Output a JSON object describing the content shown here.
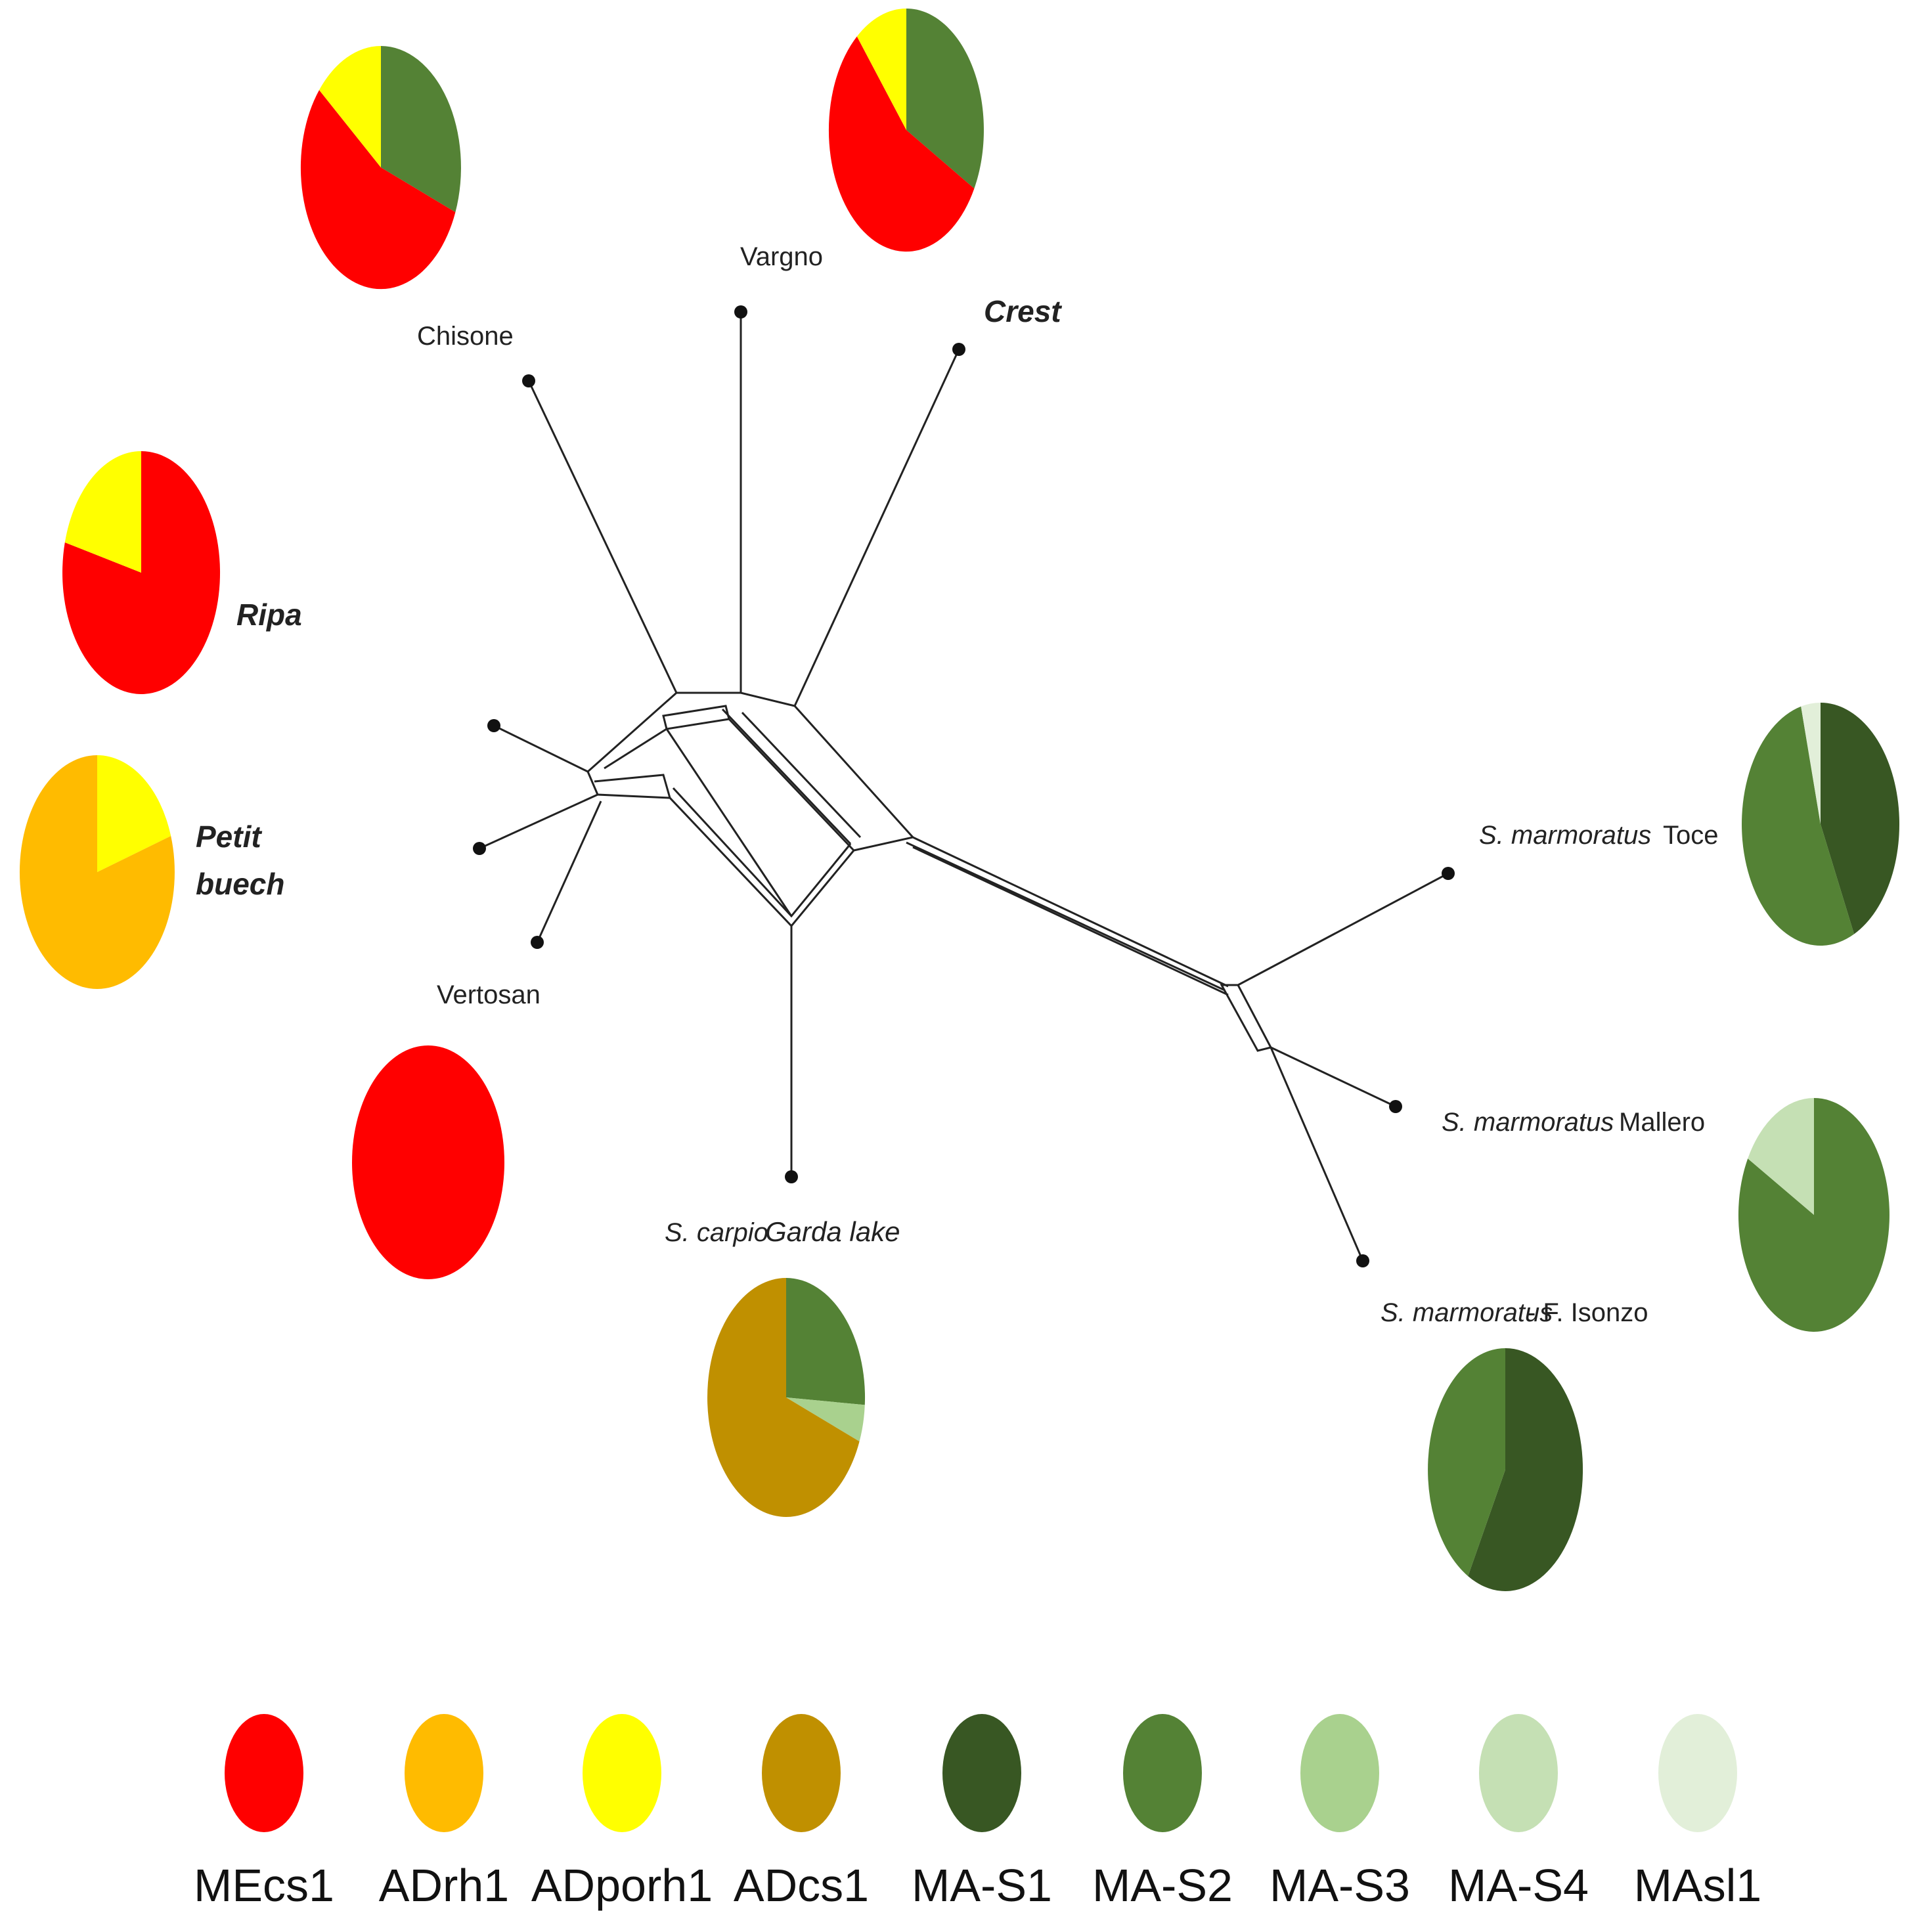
{
  "colors": {
    "MEcs1": "#ff0000",
    "ADrh1": "#ffbb00",
    "ADporh1": "#ffff00",
    "ADcs1": "#c09000",
    "MA-S1": "#385723",
    "MA-S2": "#548235",
    "MA-S3": "#a9d18e",
    "MA-S4": "#c5e0b4",
    "MAsl1": "#e2efd9"
  },
  "labels": {
    "chisone": "Chisone",
    "vargno": "Vargno",
    "crest": "Crest",
    "ripa": "Ripa",
    "petit": "Petit",
    "buech": "buech",
    "vertosan": "Vertosan",
    "scarpio": "S. carpio",
    "garda": "Garda lake",
    "smarm1": "S. marmoratus",
    "toce": "Toce",
    "smarm2": "S. marmoratus",
    "mallero": "Mallero",
    "smarm3": "S. marmoratus",
    "isonzo": "- F. Isonzo"
  },
  "pies": [
    {
      "name": "pie-chisone",
      "slices": [
        {
          "h": "MA-S2",
          "v": 0.31
        },
        {
          "h": "MEcs1",
          "v": 0.55
        },
        {
          "h": "ADporh1",
          "v": 0.14
        }
      ]
    },
    {
      "name": "pie-crest",
      "slices": [
        {
          "h": "MA-S2",
          "v": 0.33
        },
        {
          "h": "MEcs1",
          "v": 0.56
        },
        {
          "h": "ADporh1",
          "v": 0.11
        }
      ]
    },
    {
      "name": "pie-ripa",
      "slices": [
        {
          "h": "MEcs1",
          "v": 0.79
        },
        {
          "h": "ADporh1",
          "v": 0.21
        }
      ]
    },
    {
      "name": "pie-petit-buech",
      "slices": [
        {
          "h": "ADporh1",
          "v": 0.2
        },
        {
          "h": "ADrh1",
          "v": 0.8
        }
      ]
    },
    {
      "name": "pie-vertosan",
      "slices": [
        {
          "h": "MEcs1",
          "v": 1.0
        }
      ]
    },
    {
      "name": "pie-garda-lake",
      "slices": [
        {
          "h": "MA-S2",
          "v": 0.26
        },
        {
          "h": "MA-S3",
          "v": 0.05
        },
        {
          "h": "ADcs1",
          "v": 0.69
        }
      ]
    },
    {
      "name": "pie-toce",
      "slices": [
        {
          "h": "MA-S1",
          "v": 0.43
        },
        {
          "h": "MA-S2",
          "v": 0.53
        },
        {
          "h": "MAsl1",
          "v": 0.04
        }
      ]
    },
    {
      "name": "pie-mallero",
      "slices": [
        {
          "h": "MA-S2",
          "v": 0.83
        },
        {
          "h": "MA-S4",
          "v": 0.17
        }
      ]
    },
    {
      "name": "pie-isonzo",
      "slices": [
        {
          "h": "MA-S1",
          "v": 0.58
        },
        {
          "h": "MA-S2",
          "v": 0.42
        }
      ]
    }
  ],
  "legend": [
    "MEcs1",
    "ADrh1",
    "ADporh1",
    "ADcs1",
    "MA-S1",
    "MA-S2",
    "MA-S3",
    "MA-S4",
    "MAsl1"
  ]
}
